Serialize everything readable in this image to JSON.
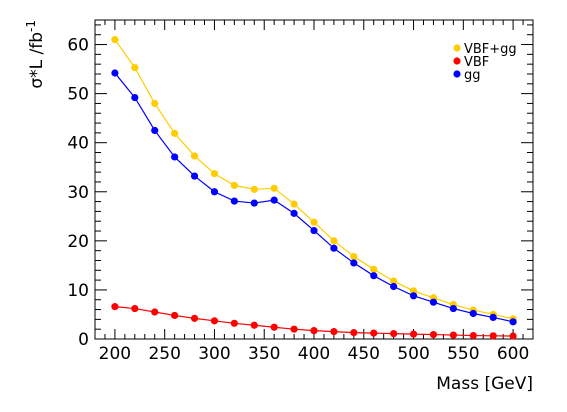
{
  "chart_data": {
    "type": "line",
    "xlabel": "Mass [GeV]",
    "ylabel": {
      "main": "σ*L /fb",
      "superscript": "-1"
    },
    "xlim": [
      180,
      620
    ],
    "ylim": [
      0,
      65
    ],
    "xticks": [
      200,
      250,
      300,
      350,
      400,
      450,
      500,
      550,
      600
    ],
    "yticks": [
      0,
      10,
      20,
      30,
      40,
      50,
      60
    ],
    "grid": false,
    "legend_position": "top-right",
    "x": [
      200,
      220,
      240,
      260,
      280,
      300,
      320,
      340,
      360,
      380,
      400,
      420,
      440,
      460,
      480,
      500,
      520,
      540,
      560,
      580,
      600
    ],
    "series": [
      {
        "name": "VBF+gg",
        "color": "#ffcc00",
        "values": [
          61.0,
          55.3,
          48.0,
          41.9,
          37.3,
          33.7,
          31.3,
          30.5,
          30.7,
          27.5,
          23.8,
          20.0,
          16.8,
          14.2,
          11.8,
          9.8,
          8.4,
          7.0,
          5.9,
          5.0,
          4.1
        ]
      },
      {
        "name": "VBF",
        "color": "#ff0000",
        "values": [
          6.6,
          6.2,
          5.5,
          4.8,
          4.2,
          3.7,
          3.2,
          2.8,
          2.4,
          2.0,
          1.7,
          1.5,
          1.3,
          1.2,
          1.1,
          1.0,
          0.9,
          0.8,
          0.7,
          0.65,
          0.6
        ]
      },
      {
        "name": "gg",
        "color": "#0000ff",
        "values": [
          54.2,
          49.2,
          42.5,
          37.1,
          33.2,
          30.0,
          28.1,
          27.7,
          28.3,
          25.6,
          22.1,
          18.5,
          15.5,
          12.9,
          10.7,
          8.8,
          7.5,
          6.2,
          5.2,
          4.4,
          3.5
        ]
      }
    ]
  }
}
